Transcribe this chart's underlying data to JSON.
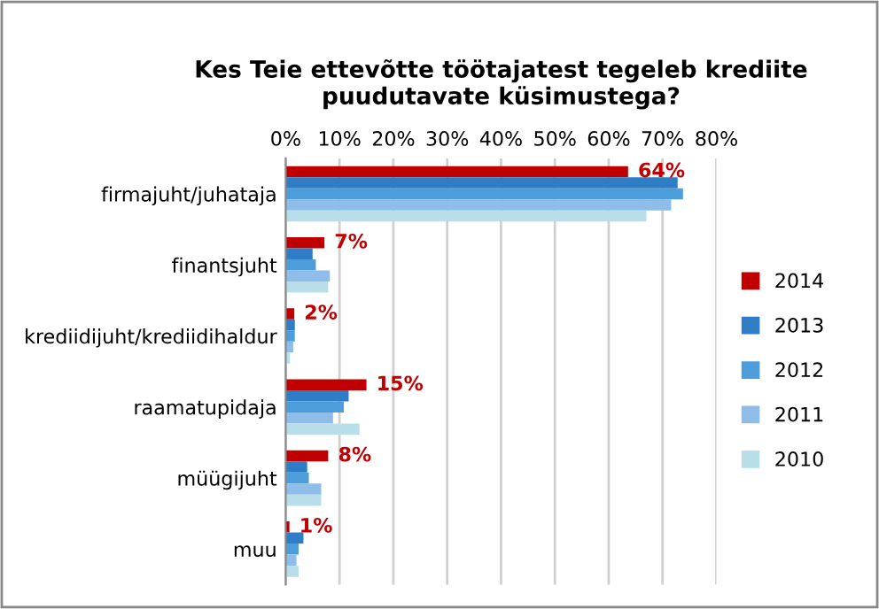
{
  "chart_data": {
    "type": "bar",
    "orientation": "horizontal",
    "title": "Kes Teie ettevõtte töötajatest tegeleb krediite\npuudutavate küsimustega?",
    "categories": [
      "firmajuht/juhataja",
      "finantsjuht",
      "krediidijuht/krediidihaldur",
      "raamatupidaja",
      "müügijuht",
      "muu"
    ],
    "series": [
      {
        "name": "2014",
        "color": "#c00000",
        "values": [
          63.6,
          7.2,
          1.6,
          15.0,
          7.9,
          0.7
        ],
        "value_labels": [
          "64%",
          "7%",
          "2%",
          "15%",
          "8%",
          "1%"
        ]
      },
      {
        "name": "2013",
        "color": "#2e7dc5",
        "values": [
          72.8,
          5.0,
          1.7,
          11.7,
          4.0,
          3.3
        ]
      },
      {
        "name": "2012",
        "color": "#4d9ddb",
        "values": [
          73.8,
          5.6,
          1.7,
          10.8,
          4.3,
          2.4
        ]
      },
      {
        "name": "2011",
        "color": "#8dbde8",
        "values": [
          71.6,
          8.2,
          1.4,
          8.8,
          6.6,
          2.0
        ]
      },
      {
        "name": "2010",
        "color": "#b8dfe9",
        "values": [
          67.0,
          7.9,
          0.8,
          13.7,
          6.6,
          2.4
        ]
      }
    ],
    "xlim": [
      0,
      80
    ],
    "xticks": [
      {
        "value": 0,
        "label": "0%"
      },
      {
        "value": 10,
        "label": "10%"
      },
      {
        "value": 20,
        "label": "20%"
      },
      {
        "value": 30,
        "label": "30%"
      },
      {
        "value": 40,
        "label": "40%"
      },
      {
        "value": 50,
        "label": "50%"
      },
      {
        "value": 60,
        "label": "60%"
      },
      {
        "value": 70,
        "label": "70%"
      },
      {
        "value": 80,
        "label": "80%"
      }
    ],
    "grid": "x",
    "legend": "right"
  }
}
